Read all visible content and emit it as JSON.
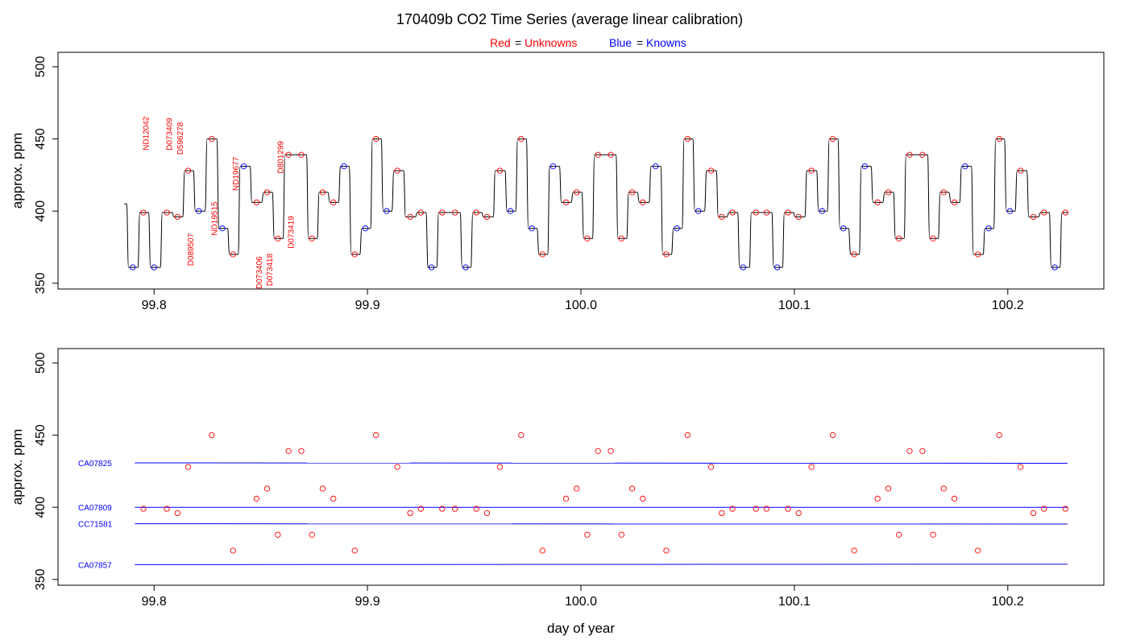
{
  "header": {
    "title": "170409b   CO2 Time Series (average linear calibration)",
    "legend_red_word": "Red",
    "legend_red_rest": "Unknowns",
    "legend_blue_word": "Blue",
    "legend_blue_rest": "Knowns",
    "legend_eq": "="
  },
  "colors": {
    "unknown": "#ff0000",
    "known": "#0000ff",
    "trace": "#000000"
  },
  "chart_data": [
    {
      "type": "line",
      "panel": "top",
      "xlabel": "",
      "ylabel": "approx. ppm",
      "xlim": [
        99.755,
        100.245
      ],
      "ylim": [
        346,
        510
      ],
      "xticks": [
        {
          "v": 99.8,
          "label": "99.8"
        },
        {
          "v": 99.9,
          "label": "99.9"
        },
        {
          "v": 100.0,
          "label": "100.0"
        },
        {
          "v": 100.1,
          "label": "100.1"
        },
        {
          "v": 100.2,
          "label": "100.2"
        }
      ],
      "yticks": [
        {
          "v": 350,
          "label": "350"
        },
        {
          "v": 400,
          "label": "400"
        },
        {
          "v": 450,
          "label": "450"
        },
        {
          "v": 500,
          "label": "500"
        }
      ],
      "trace_start": {
        "x": 99.786,
        "y": 405
      },
      "trace_end_x": 100.228,
      "samples": [
        {
          "x": 99.79,
          "y": 361,
          "kind": "known"
        },
        {
          "x": 99.795,
          "y": 399,
          "kind": "unknown"
        },
        {
          "x": 99.8,
          "y": 361,
          "kind": "known"
        },
        {
          "x": 99.806,
          "y": 399,
          "kind": "unknown"
        },
        {
          "x": 99.811,
          "y": 396,
          "kind": "unknown"
        },
        {
          "x": 99.816,
          "y": 428,
          "kind": "unknown"
        },
        {
          "x": 99.821,
          "y": 400,
          "kind": "known"
        },
        {
          "x": 99.827,
          "y": 450,
          "kind": "unknown"
        },
        {
          "x": 99.832,
          "y": 388,
          "kind": "known"
        },
        {
          "x": 99.837,
          "y": 370,
          "kind": "unknown"
        },
        {
          "x": 99.842,
          "y": 431,
          "kind": "known"
        },
        {
          "x": 99.848,
          "y": 406,
          "kind": "unknown"
        },
        {
          "x": 99.853,
          "y": 413,
          "kind": "unknown"
        },
        {
          "x": 99.858,
          "y": 381,
          "kind": "unknown"
        },
        {
          "x": 99.863,
          "y": 439,
          "kind": "unknown"
        },
        {
          "x": 99.869,
          "y": 439,
          "kind": "unknown"
        },
        {
          "x": 99.874,
          "y": 381,
          "kind": "unknown"
        },
        {
          "x": 99.879,
          "y": 413,
          "kind": "unknown"
        },
        {
          "x": 99.884,
          "y": 406,
          "kind": "unknown"
        },
        {
          "x": 99.889,
          "y": 431,
          "kind": "known"
        },
        {
          "x": 99.894,
          "y": 370,
          "kind": "unknown"
        },
        {
          "x": 99.899,
          "y": 388,
          "kind": "known"
        },
        {
          "x": 99.904,
          "y": 450,
          "kind": "unknown"
        },
        {
          "x": 99.909,
          "y": 400,
          "kind": "known"
        },
        {
          "x": 99.914,
          "y": 428,
          "kind": "unknown"
        },
        {
          "x": 99.92,
          "y": 396,
          "kind": "unknown"
        },
        {
          "x": 99.925,
          "y": 399,
          "kind": "unknown"
        },
        {
          "x": 99.93,
          "y": 361,
          "kind": "known"
        },
        {
          "x": 99.935,
          "y": 399,
          "kind": "unknown"
        },
        {
          "x": 99.941,
          "y": 399,
          "kind": "unknown"
        },
        {
          "x": 99.946,
          "y": 361,
          "kind": "known"
        },
        {
          "x": 99.951,
          "y": 399,
          "kind": "unknown"
        },
        {
          "x": 99.956,
          "y": 396,
          "kind": "unknown"
        },
        {
          "x": 99.962,
          "y": 428,
          "kind": "unknown"
        },
        {
          "x": 99.967,
          "y": 400,
          "kind": "known"
        },
        {
          "x": 99.972,
          "y": 450,
          "kind": "unknown"
        },
        {
          "x": 99.977,
          "y": 388,
          "kind": "known"
        },
        {
          "x": 99.982,
          "y": 370,
          "kind": "unknown"
        },
        {
          "x": 99.987,
          "y": 431,
          "kind": "known"
        },
        {
          "x": 99.993,
          "y": 406,
          "kind": "unknown"
        },
        {
          "x": 99.998,
          "y": 413,
          "kind": "unknown"
        },
        {
          "x": 100.003,
          "y": 381,
          "kind": "unknown"
        },
        {
          "x": 100.008,
          "y": 439,
          "kind": "unknown"
        },
        {
          "x": 100.014,
          "y": 439,
          "kind": "unknown"
        },
        {
          "x": 100.019,
          "y": 381,
          "kind": "unknown"
        },
        {
          "x": 100.024,
          "y": 413,
          "kind": "unknown"
        },
        {
          "x": 100.029,
          "y": 406,
          "kind": "unknown"
        },
        {
          "x": 100.035,
          "y": 431,
          "kind": "known"
        },
        {
          "x": 100.04,
          "y": 370,
          "kind": "unknown"
        },
        {
          "x": 100.045,
          "y": 388,
          "kind": "known"
        },
        {
          "x": 100.05,
          "y": 450,
          "kind": "unknown"
        },
        {
          "x": 100.055,
          "y": 400,
          "kind": "known"
        },
        {
          "x": 100.061,
          "y": 428,
          "kind": "unknown"
        },
        {
          "x": 100.066,
          "y": 396,
          "kind": "unknown"
        },
        {
          "x": 100.071,
          "y": 399,
          "kind": "unknown"
        },
        {
          "x": 100.076,
          "y": 361,
          "kind": "known"
        },
        {
          "x": 100.082,
          "y": 399,
          "kind": "unknown"
        },
        {
          "x": 100.087,
          "y": 399,
          "kind": "unknown"
        },
        {
          "x": 100.092,
          "y": 361,
          "kind": "known"
        },
        {
          "x": 100.097,
          "y": 399,
          "kind": "unknown"
        },
        {
          "x": 100.102,
          "y": 396,
          "kind": "unknown"
        },
        {
          "x": 100.108,
          "y": 428,
          "kind": "unknown"
        },
        {
          "x": 100.113,
          "y": 400,
          "kind": "known"
        },
        {
          "x": 100.118,
          "y": 450,
          "kind": "unknown"
        },
        {
          "x": 100.123,
          "y": 388,
          "kind": "known"
        },
        {
          "x": 100.128,
          "y": 370,
          "kind": "unknown"
        },
        {
          "x": 100.133,
          "y": 431,
          "kind": "known"
        },
        {
          "x": 100.139,
          "y": 406,
          "kind": "unknown"
        },
        {
          "x": 100.144,
          "y": 413,
          "kind": "unknown"
        },
        {
          "x": 100.149,
          "y": 381,
          "kind": "unknown"
        },
        {
          "x": 100.154,
          "y": 439,
          "kind": "unknown"
        },
        {
          "x": 100.16,
          "y": 439,
          "kind": "unknown"
        },
        {
          "x": 100.165,
          "y": 381,
          "kind": "unknown"
        },
        {
          "x": 100.17,
          "y": 413,
          "kind": "unknown"
        },
        {
          "x": 100.175,
          "y": 406,
          "kind": "unknown"
        },
        {
          "x": 100.18,
          "y": 431,
          "kind": "known"
        },
        {
          "x": 100.186,
          "y": 370,
          "kind": "unknown"
        },
        {
          "x": 100.191,
          "y": 388,
          "kind": "known"
        },
        {
          "x": 100.196,
          "y": 450,
          "kind": "unknown"
        },
        {
          "x": 100.201,
          "y": 400,
          "kind": "known"
        },
        {
          "x": 100.206,
          "y": 428,
          "kind": "unknown"
        },
        {
          "x": 100.212,
          "y": 396,
          "kind": "unknown"
        },
        {
          "x": 100.217,
          "y": 399,
          "kind": "unknown"
        },
        {
          "x": 100.222,
          "y": 361,
          "kind": "known"
        },
        {
          "x": 100.227,
          "y": 399,
          "kind": "unknown"
        }
      ],
      "annotations": [
        {
          "text": "ND12042",
          "x": 99.796,
          "y": 442
        },
        {
          "text": "D073409",
          "x": 99.807,
          "y": 442
        },
        {
          "text": "D596278",
          "x": 99.812,
          "y": 439
        },
        {
          "text": "D089507",
          "x": 99.817,
          "y": 362
        },
        {
          "text": "ND19515",
          "x": 99.828,
          "y": 383
        },
        {
          "text": "ND19677",
          "x": 99.838,
          "y": 414
        },
        {
          "text": "D073406",
          "x": 99.849,
          "y": 346
        },
        {
          "text": "D073418",
          "x": 99.854,
          "y": 348
        },
        {
          "text": "D801299",
          "x": 99.859,
          "y": 426
        },
        {
          "text": "D073419",
          "x": 99.864,
          "y": 374
        }
      ]
    },
    {
      "type": "scatter",
      "panel": "bottom",
      "xlabel": "day of year",
      "ylabel": "approx. ppm",
      "xlim": [
        99.755,
        100.245
      ],
      "ylim": [
        346,
        510
      ],
      "xticks": [
        {
          "v": 99.8,
          "label": "99.8"
        },
        {
          "v": 99.9,
          "label": "99.9"
        },
        {
          "v": 100.0,
          "label": "100.0"
        },
        {
          "v": 100.1,
          "label": "100.1"
        },
        {
          "v": 100.2,
          "label": "100.2"
        }
      ],
      "yticks": [
        {
          "v": 350,
          "label": "350"
        },
        {
          "v": 400,
          "label": "400"
        },
        {
          "v": 450,
          "label": "450"
        },
        {
          "v": 500,
          "label": "500"
        }
      ],
      "reference_lines": [
        {
          "name": "CA07825",
          "y_start": 430.8,
          "y_end": 430.5,
          "x_start": 99.791,
          "x_end": 100.228
        },
        {
          "name": "CA07809",
          "y_start": 400.0,
          "y_end": 400.0,
          "x_start": 99.791,
          "x_end": 100.228
        },
        {
          "name": "CC71581",
          "y_start": 388.6,
          "y_end": 388.4,
          "x_start": 99.791,
          "x_end": 100.228
        },
        {
          "name": "CA07857",
          "y_start": 360.3,
          "y_end": 360.6,
          "x_start": 99.791,
          "x_end": 100.228
        }
      ],
      "unknowns": [
        {
          "x": 99.795,
          "y": 399
        },
        {
          "x": 99.806,
          "y": 399
        },
        {
          "x": 99.811,
          "y": 396
        },
        {
          "x": 99.816,
          "y": 428
        },
        {
          "x": 99.827,
          "y": 450
        },
        {
          "x": 99.837,
          "y": 370
        },
        {
          "x": 99.848,
          "y": 406
        },
        {
          "x": 99.853,
          "y": 413
        },
        {
          "x": 99.858,
          "y": 381
        },
        {
          "x": 99.863,
          "y": 439
        },
        {
          "x": 99.869,
          "y": 439
        },
        {
          "x": 99.874,
          "y": 381
        },
        {
          "x": 99.879,
          "y": 413
        },
        {
          "x": 99.884,
          "y": 406
        },
        {
          "x": 99.894,
          "y": 370
        },
        {
          "x": 99.904,
          "y": 450
        },
        {
          "x": 99.914,
          "y": 428
        },
        {
          "x": 99.92,
          "y": 396
        },
        {
          "x": 99.925,
          "y": 399
        },
        {
          "x": 99.935,
          "y": 399
        },
        {
          "x": 99.941,
          "y": 399
        },
        {
          "x": 99.951,
          "y": 399
        },
        {
          "x": 99.956,
          "y": 396
        },
        {
          "x": 99.962,
          "y": 428
        },
        {
          "x": 99.972,
          "y": 450
        },
        {
          "x": 99.982,
          "y": 370
        },
        {
          "x": 99.993,
          "y": 406
        },
        {
          "x": 99.998,
          "y": 413
        },
        {
          "x": 100.003,
          "y": 381
        },
        {
          "x": 100.008,
          "y": 439
        },
        {
          "x": 100.014,
          "y": 439
        },
        {
          "x": 100.019,
          "y": 381
        },
        {
          "x": 100.024,
          "y": 413
        },
        {
          "x": 100.029,
          "y": 406
        },
        {
          "x": 100.04,
          "y": 370
        },
        {
          "x": 100.05,
          "y": 450
        },
        {
          "x": 100.061,
          "y": 428
        },
        {
          "x": 100.066,
          "y": 396
        },
        {
          "x": 100.071,
          "y": 399
        },
        {
          "x": 100.082,
          "y": 399
        },
        {
          "x": 100.087,
          "y": 399
        },
        {
          "x": 100.097,
          "y": 399
        },
        {
          "x": 100.102,
          "y": 396
        },
        {
          "x": 100.108,
          "y": 428
        },
        {
          "x": 100.118,
          "y": 450
        },
        {
          "x": 100.128,
          "y": 370
        },
        {
          "x": 100.139,
          "y": 406
        },
        {
          "x": 100.144,
          "y": 413
        },
        {
          "x": 100.149,
          "y": 381
        },
        {
          "x": 100.154,
          "y": 439
        },
        {
          "x": 100.16,
          "y": 439
        },
        {
          "x": 100.165,
          "y": 381
        },
        {
          "x": 100.17,
          "y": 413
        },
        {
          "x": 100.175,
          "y": 406
        },
        {
          "x": 100.186,
          "y": 370
        },
        {
          "x": 100.196,
          "y": 450
        },
        {
          "x": 100.206,
          "y": 428
        },
        {
          "x": 100.212,
          "y": 396
        },
        {
          "x": 100.217,
          "y": 399
        },
        {
          "x": 100.227,
          "y": 399
        }
      ]
    }
  ]
}
